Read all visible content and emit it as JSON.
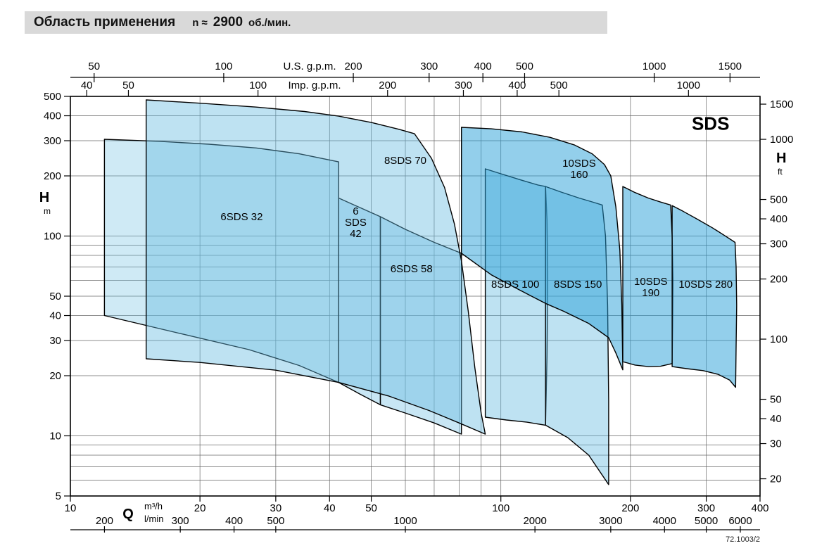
{
  "header": {
    "title": "Область применения",
    "speed_prefix": "n ≈",
    "speed_value": "2900",
    "speed_unit": "об./мин."
  },
  "chart_data": {
    "type": "area",
    "title": "Область применения n ≈ 2900 об./мин.",
    "log_x": true,
    "log_y": true,
    "x_range_m3h": [
      10,
      400
    ],
    "y_range_m": [
      5,
      500
    ],
    "series_label": "SDS",
    "series_label_pos": [
      307,
      340
    ],
    "axes": {
      "top_us_gpm": {
        "title": "U.S. g.p.m.",
        "to_m3h": 0.2271,
        "ticks": [
          50,
          100,
          200,
          300,
          400,
          500,
          1000,
          1500
        ]
      },
      "top_imp_gpm": {
        "title": "Imp. g.p.m.",
        "to_m3h": 0.2728,
        "ticks": [
          40,
          50,
          100,
          200,
          300,
          400,
          500,
          1000
        ]
      },
      "left_head_m": {
        "title": "H",
        "unit": "m",
        "ticks": [
          500,
          400,
          300,
          200,
          100,
          50,
          40,
          30,
          20,
          10,
          5
        ]
      },
      "right_head_ft": {
        "title": "H",
        "unit": "ft",
        "to_m": 0.3048,
        "ticks": [
          1500,
          1000,
          500,
          400,
          300,
          200,
          100,
          50,
          40,
          30,
          20
        ]
      },
      "bottom_m3h": {
        "title": "Q",
        "unit": "m³/h",
        "ticks": [
          10,
          20,
          30,
          40,
          50,
          100,
          200,
          300,
          400
        ]
      },
      "bottom_lmin": {
        "unit": "l/min",
        "to_m3h": 0.06,
        "ticks": [
          200,
          300,
          400,
          500,
          1000,
          2000,
          3000,
          4000,
          5000,
          6000
        ]
      }
    },
    "grid": {
      "v_lines_m3h": [
        20,
        30,
        40,
        50,
        60,
        70,
        80,
        90,
        100,
        200,
        300
      ],
      "h_lines_m": [
        6,
        7,
        8,
        9,
        10,
        20,
        30,
        40,
        50,
        60,
        70,
        80,
        90,
        100,
        200,
        300,
        400
      ]
    },
    "regions": [
      {
        "id": "6sds-32",
        "label_lines": [
          "6SDS 32"
        ],
        "label_pos": [
          25,
          120
        ],
        "fill": "rgba(110,190,225,0.33)",
        "points": [
          [
            12,
            305
          ],
          [
            16,
            298
          ],
          [
            21,
            288
          ],
          [
            27,
            276
          ],
          [
            34,
            258
          ],
          [
            42,
            235
          ],
          [
            42,
            18.5
          ],
          [
            34,
            22.5
          ],
          [
            26,
            27
          ],
          [
            18,
            32.5
          ],
          [
            12,
            40
          ]
        ]
      },
      {
        "id": "6sds-42",
        "label_lines": [
          "6",
          "SDS",
          "42"
        ],
        "label_pos": [
          46,
          128
        ],
        "fill": "rgba(110,190,225,0.38)",
        "points": [
          [
            42,
            155
          ],
          [
            47,
            139
          ],
          [
            52.5,
            125
          ],
          [
            52.5,
            14.3
          ],
          [
            47,
            16.2
          ],
          [
            42,
            18.5
          ]
        ]
      },
      {
        "id": "6sds-58",
        "label_lines": [
          "6SDS 58"
        ],
        "label_pos": [
          62,
          66
        ],
        "fill": "rgba(110,190,225,0.38)",
        "points": [
          [
            52.5,
            125
          ],
          [
            60,
            108
          ],
          [
            70,
            93
          ],
          [
            81,
            82
          ],
          [
            81,
            10.2
          ],
          [
            70,
            11.6
          ],
          [
            60,
            13
          ],
          [
            52.5,
            14.3
          ]
        ]
      },
      {
        "id": "8sds-70",
        "label_lines": [
          "8SDS 70"
        ],
        "label_pos": [
          60,
          230
        ],
        "fill": "rgba(100,185,225,0.42)",
        "points": [
          [
            15,
            480
          ],
          [
            20,
            462
          ],
          [
            27,
            442
          ],
          [
            35,
            420
          ],
          [
            42,
            398
          ],
          [
            50,
            370
          ],
          [
            58,
            342
          ],
          [
            63,
            325
          ],
          [
            69,
            245
          ],
          [
            74,
            175
          ],
          [
            78,
            115
          ],
          [
            81,
            75
          ],
          [
            84,
            42
          ],
          [
            87,
            22
          ],
          [
            90,
            13
          ],
          [
            92,
            10.2
          ],
          [
            80,
            11.6
          ],
          [
            68,
            13.4
          ],
          [
            55,
            15.8
          ],
          [
            42,
            18.5
          ],
          [
            30,
            21.3
          ],
          [
            20,
            23.3
          ],
          [
            15,
            24.3
          ]
        ]
      },
      {
        "id": "8sds-100",
        "label_lines": [
          "8SDS 100"
        ],
        "label_pos": [
          108,
          55
        ],
        "fill": "rgba(100,185,225,0.42)",
        "points": [
          [
            92,
            217
          ],
          [
            100,
            205
          ],
          [
            112,
            190
          ],
          [
            122,
            180
          ],
          [
            127,
            177
          ],
          [
            128,
            120
          ],
          [
            128.5,
            60
          ],
          [
            128,
            25
          ],
          [
            127,
            11.3
          ],
          [
            115,
            11.7
          ],
          [
            103,
            12
          ],
          [
            92,
            12.4
          ]
        ]
      },
      {
        "id": "8sds-150",
        "label_lines": [
          "8SDS 150"
        ],
        "label_pos": [
          151,
          55
        ],
        "fill": "rgba(100,185,225,0.42)",
        "points": [
          [
            127,
            177
          ],
          [
            138,
            166
          ],
          [
            152,
            155
          ],
          [
            165,
            147
          ],
          [
            172,
            143
          ],
          [
            175,
            100
          ],
          [
            177,
            45
          ],
          [
            178,
            15
          ],
          [
            178,
            5.7
          ],
          [
            160,
            8
          ],
          [
            143,
            9.8
          ],
          [
            127,
            11.3
          ]
        ]
      },
      {
        "id": "10sds-160",
        "label_lines": [
          "10SDS",
          "160"
        ],
        "label_pos": [
          152,
          222
        ],
        "fill": "rgba(40,160,215,0.5)",
        "points": [
          [
            81,
            350
          ],
          [
            95,
            344
          ],
          [
            112,
            332
          ],
          [
            130,
            312
          ],
          [
            148,
            286
          ],
          [
            163,
            258
          ],
          [
            174,
            228
          ],
          [
            180,
            200
          ],
          [
            185,
            140
          ],
          [
            189,
            85
          ],
          [
            191,
            45
          ],
          [
            192,
            21.4
          ],
          [
            185,
            26
          ],
          [
            178,
            31
          ],
          [
            160,
            36.5
          ],
          [
            140,
            42
          ],
          [
            127,
            46
          ],
          [
            110,
            54
          ],
          [
            95,
            64
          ],
          [
            81,
            82
          ]
        ]
      },
      {
        "id": "10sds-190",
        "label_lines": [
          "10SDS",
          "190"
        ],
        "label_pos": [
          223,
          57
        ],
        "fill": "rgba(40,160,215,0.5)",
        "points": [
          [
            192,
            177
          ],
          [
            205,
            165
          ],
          [
            220,
            155
          ],
          [
            235,
            148
          ],
          [
            248,
            143
          ],
          [
            250,
            100
          ],
          [
            251,
            60
          ],
          [
            250.5,
            35
          ],
          [
            250,
            23
          ],
          [
            235,
            22.3
          ],
          [
            220,
            22.2
          ],
          [
            205,
            22.6
          ],
          [
            192,
            23.5
          ]
        ]
      },
      {
        "id": "10sds-280",
        "label_lines": [
          "10SDS 280"
        ],
        "label_pos": [
          299,
          55
        ],
        "fill": "rgba(40,160,215,0.5)",
        "points": [
          [
            250,
            142
          ],
          [
            265,
            133
          ],
          [
            285,
            122
          ],
          [
            310,
            110
          ],
          [
            330,
            101
          ],
          [
            350,
            93
          ],
          [
            352,
            70
          ],
          [
            353,
            45
          ],
          [
            352,
            28
          ],
          [
            351,
            17.5
          ],
          [
            340,
            19
          ],
          [
            320,
            20.3
          ],
          [
            295,
            21.2
          ],
          [
            270,
            21.7
          ],
          [
            250,
            22.2
          ]
        ]
      }
    ]
  },
  "footer": {
    "doc_number": "72.1003/2"
  }
}
